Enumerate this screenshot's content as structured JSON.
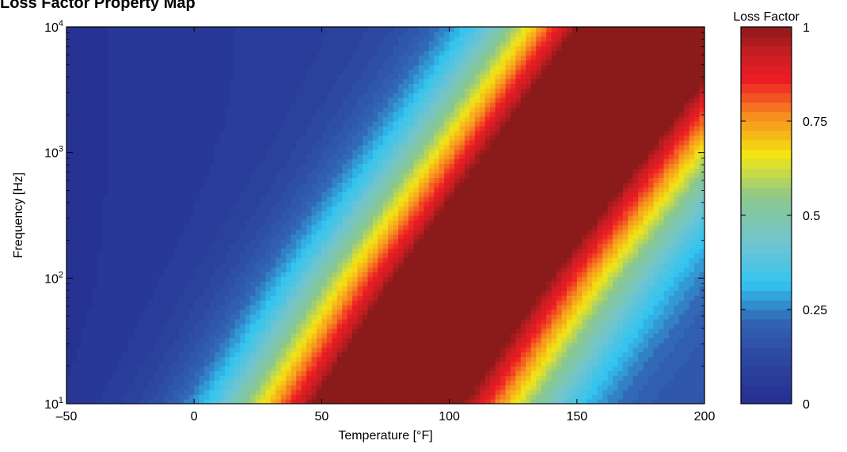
{
  "chart_data": {
    "type": "heatmap",
    "title": "Loss Factor Property Map",
    "xlabel": "Temperature [°F]",
    "ylabel": "Frequency [Hz]",
    "xlim": [
      -50,
      200
    ],
    "ylim": [
      10,
      10000
    ],
    "y_scale": "log",
    "x_ticks": [
      -50,
      0,
      50,
      100,
      150,
      200
    ],
    "x_tick_labels": [
      "–50",
      "0",
      "50",
      "100",
      "150",
      "200"
    ],
    "y_ticks": [
      10,
      100,
      1000,
      10000
    ],
    "y_tick_labels": [
      {
        "base": "10",
        "exp": "1"
      },
      {
        "base": "10",
        "exp": "2"
      },
      {
        "base": "10",
        "exp": "3"
      },
      {
        "base": "10",
        "exp": "4"
      }
    ],
    "colorbar": {
      "label": "Loss Factor",
      "range": [
        0,
        1
      ],
      "ticks": [
        0,
        0.25,
        0.5,
        0.75,
        1
      ],
      "tick_labels": [
        "0",
        "0.25",
        "0.5",
        "0.75",
        "1"
      ],
      "colormap": "jet-like",
      "colors": [
        "#252e8f",
        "#2f58a8",
        "#32c4f0",
        "#78c4d0",
        "#f4e612",
        "#f7921e",
        "#ed1c24",
        "#8b1a1a"
      ]
    },
    "peak_temperature_at_frequency": [
      {
        "frequency": 10,
        "temperature": 75
      },
      {
        "frequency": 100,
        "temperature": 108
      },
      {
        "frequency": 1000,
        "temperature": 145
      },
      {
        "frequency": 10000,
        "temperature": 182
      }
    ],
    "value_samples": [
      {
        "temperature": -50,
        "frequency": 10,
        "loss_factor": 0.22
      },
      {
        "temperature": 0,
        "frequency": 10,
        "loss_factor": 0.4
      },
      {
        "temperature": 25,
        "frequency": 10,
        "loss_factor": 0.8
      },
      {
        "temperature": 75,
        "frequency": 10,
        "loss_factor": 1.0
      },
      {
        "temperature": 130,
        "frequency": 10,
        "loss_factor": 0.7
      },
      {
        "temperature": 200,
        "frequency": 10,
        "loss_factor": 0.2
      },
      {
        "temperature": -50,
        "frequency": 10000,
        "loss_factor": 0.05
      },
      {
        "temperature": 100,
        "frequency": 10000,
        "loss_factor": 0.6
      },
      {
        "temperature": 200,
        "frequency": 10000,
        "loss_factor": 1.0
      }
    ]
  }
}
